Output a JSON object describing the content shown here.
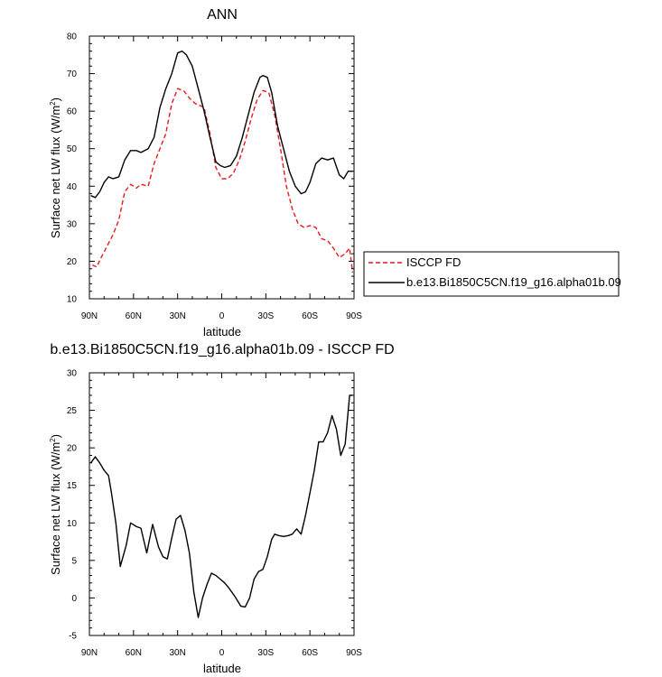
{
  "chart_data": [
    {
      "type": "line",
      "title": "ANN",
      "xlabel": "latitude",
      "ylabel": "Surface net LW flux (W/m",
      "ylabel_sup": "2",
      "ylabel_close": ")",
      "xlim": [
        -90,
        90
      ],
      "ylim": [
        10,
        80
      ],
      "x_ticks": [
        -90,
        -60,
        -30,
        0,
        30,
        60,
        90
      ],
      "x_tick_labels": [
        "90N",
        "60N",
        "30N",
        "0",
        "30S",
        "60S",
        "90S"
      ],
      "y_ticks": [
        10,
        20,
        30,
        40,
        50,
        60,
        70,
        80
      ],
      "y_tick_labels": [
        "10",
        "20",
        "30",
        "40",
        "50",
        "60",
        "70",
        "80"
      ],
      "legend": "right",
      "series": [
        {
          "name": "ISCCP FD",
          "color": "#e41a1c",
          "dash": "dashed",
          "x": [
            -88,
            -85,
            -82,
            -78,
            -74,
            -70,
            -66,
            -62,
            -58,
            -55,
            -50,
            -46,
            -42,
            -38,
            -34,
            -30,
            -26,
            -22,
            -18,
            -15,
            -12,
            -8,
            -4,
            0,
            4,
            8,
            12,
            16,
            20,
            24,
            28,
            32,
            36,
            40,
            44,
            48,
            52,
            56,
            60,
            64,
            68,
            72,
            76,
            80,
            84,
            87,
            89
          ],
          "y": [
            19,
            18.5,
            21,
            24,
            27,
            31,
            38.5,
            40.5,
            39.5,
            40.5,
            40,
            46,
            50,
            54,
            62,
            66,
            65.5,
            63.5,
            62,
            61.5,
            61,
            54,
            45,
            42,
            42,
            43.5,
            47,
            52,
            58,
            63,
            65.5,
            65,
            59,
            50,
            40,
            34,
            30,
            29,
            29.5,
            29,
            26,
            25.5,
            23.5,
            21,
            22,
            23.5,
            17
          ]
        },
        {
          "name": "b.e13.Bi1850C5CN.f19_g16.alpha01b.09",
          "color": "#000000",
          "dash": "solid",
          "x": [
            -89,
            -86,
            -83,
            -80,
            -77,
            -74,
            -70,
            -66,
            -62,
            -58,
            -55,
            -50,
            -46,
            -42,
            -38,
            -34,
            -30,
            -27,
            -24,
            -20,
            -16,
            -12,
            -8,
            -4,
            -1,
            2,
            6,
            10,
            14,
            18,
            22,
            26,
            28,
            31,
            34,
            38,
            42,
            46,
            50,
            54,
            57,
            60,
            64,
            68,
            72,
            76,
            80,
            83,
            86,
            89
          ],
          "y": [
            37.5,
            37,
            38.5,
            41,
            42.5,
            42,
            42.5,
            47,
            49.5,
            49.5,
            49,
            50,
            53,
            61,
            66,
            70,
            75.5,
            76,
            75,
            72,
            66,
            60,
            53,
            46.5,
            45.5,
            45,
            45.5,
            48,
            53,
            59,
            65,
            69,
            69.5,
            69,
            65,
            56,
            50,
            44,
            40,
            38,
            38.5,
            41,
            46,
            47.5,
            47,
            47.5,
            43,
            42,
            44,
            44
          ]
        }
      ]
    },
    {
      "type": "line",
      "title": "b.e13.Bi1850C5CN.f19_g16.alpha01b.09 - ISCCP FD",
      "xlabel": "latitude",
      "ylabel": "Surface net LW flux (W/m",
      "ylabel_sup": "2",
      "ylabel_close": ")",
      "xlim": [
        -90,
        90
      ],
      "ylim": [
        -5,
        30
      ],
      "x_ticks": [
        -90,
        -60,
        -30,
        0,
        30,
        60,
        90
      ],
      "x_tick_labels": [
        "90N",
        "60N",
        "30N",
        "0",
        "30S",
        "60S",
        "90S"
      ],
      "y_ticks": [
        -5,
        0,
        5,
        10,
        15,
        20,
        25,
        30
      ],
      "y_tick_labels": [
        "-5",
        "0",
        "5",
        "10",
        "15",
        "20",
        "25",
        "30"
      ],
      "series": [
        {
          "color": "#000000",
          "dash": "solid",
          "x": [
            -89,
            -86,
            -83,
            -80,
            -77,
            -75,
            -72,
            -69,
            -65,
            -62,
            -58,
            -55,
            -51,
            -47,
            -43,
            -40,
            -37,
            -34,
            -31,
            -28,
            -25,
            -22,
            -19,
            -16,
            -13,
            -10,
            -7,
            -4,
            -1,
            2,
            5,
            9,
            13,
            16,
            19,
            22,
            25,
            28,
            31,
            34,
            36,
            39,
            42,
            45,
            48,
            51,
            54,
            57,
            60,
            63,
            66,
            69,
            72,
            75,
            78,
            81,
            84,
            87,
            89
          ],
          "y": [
            18,
            18.8,
            18,
            17,
            16.3,
            14,
            10,
            4.2,
            7,
            10,
            9.5,
            9.3,
            6,
            9.8,
            6.8,
            5.5,
            5.2,
            8,
            10.5,
            11,
            9,
            6,
            0.8,
            -2.6,
            0,
            1.8,
            3.3,
            3,
            2.5,
            2,
            1.3,
            0.2,
            -1.1,
            -1.2,
            0,
            2.5,
            3.5,
            3.8,
            5.5,
            7.8,
            8.5,
            8.3,
            8.2,
            8.3,
            8.5,
            9.2,
            8.5,
            11,
            14,
            17,
            20.8,
            20.8,
            22,
            24.3,
            22.5,
            19,
            20.5,
            27,
            27
          ]
        }
      ]
    }
  ]
}
